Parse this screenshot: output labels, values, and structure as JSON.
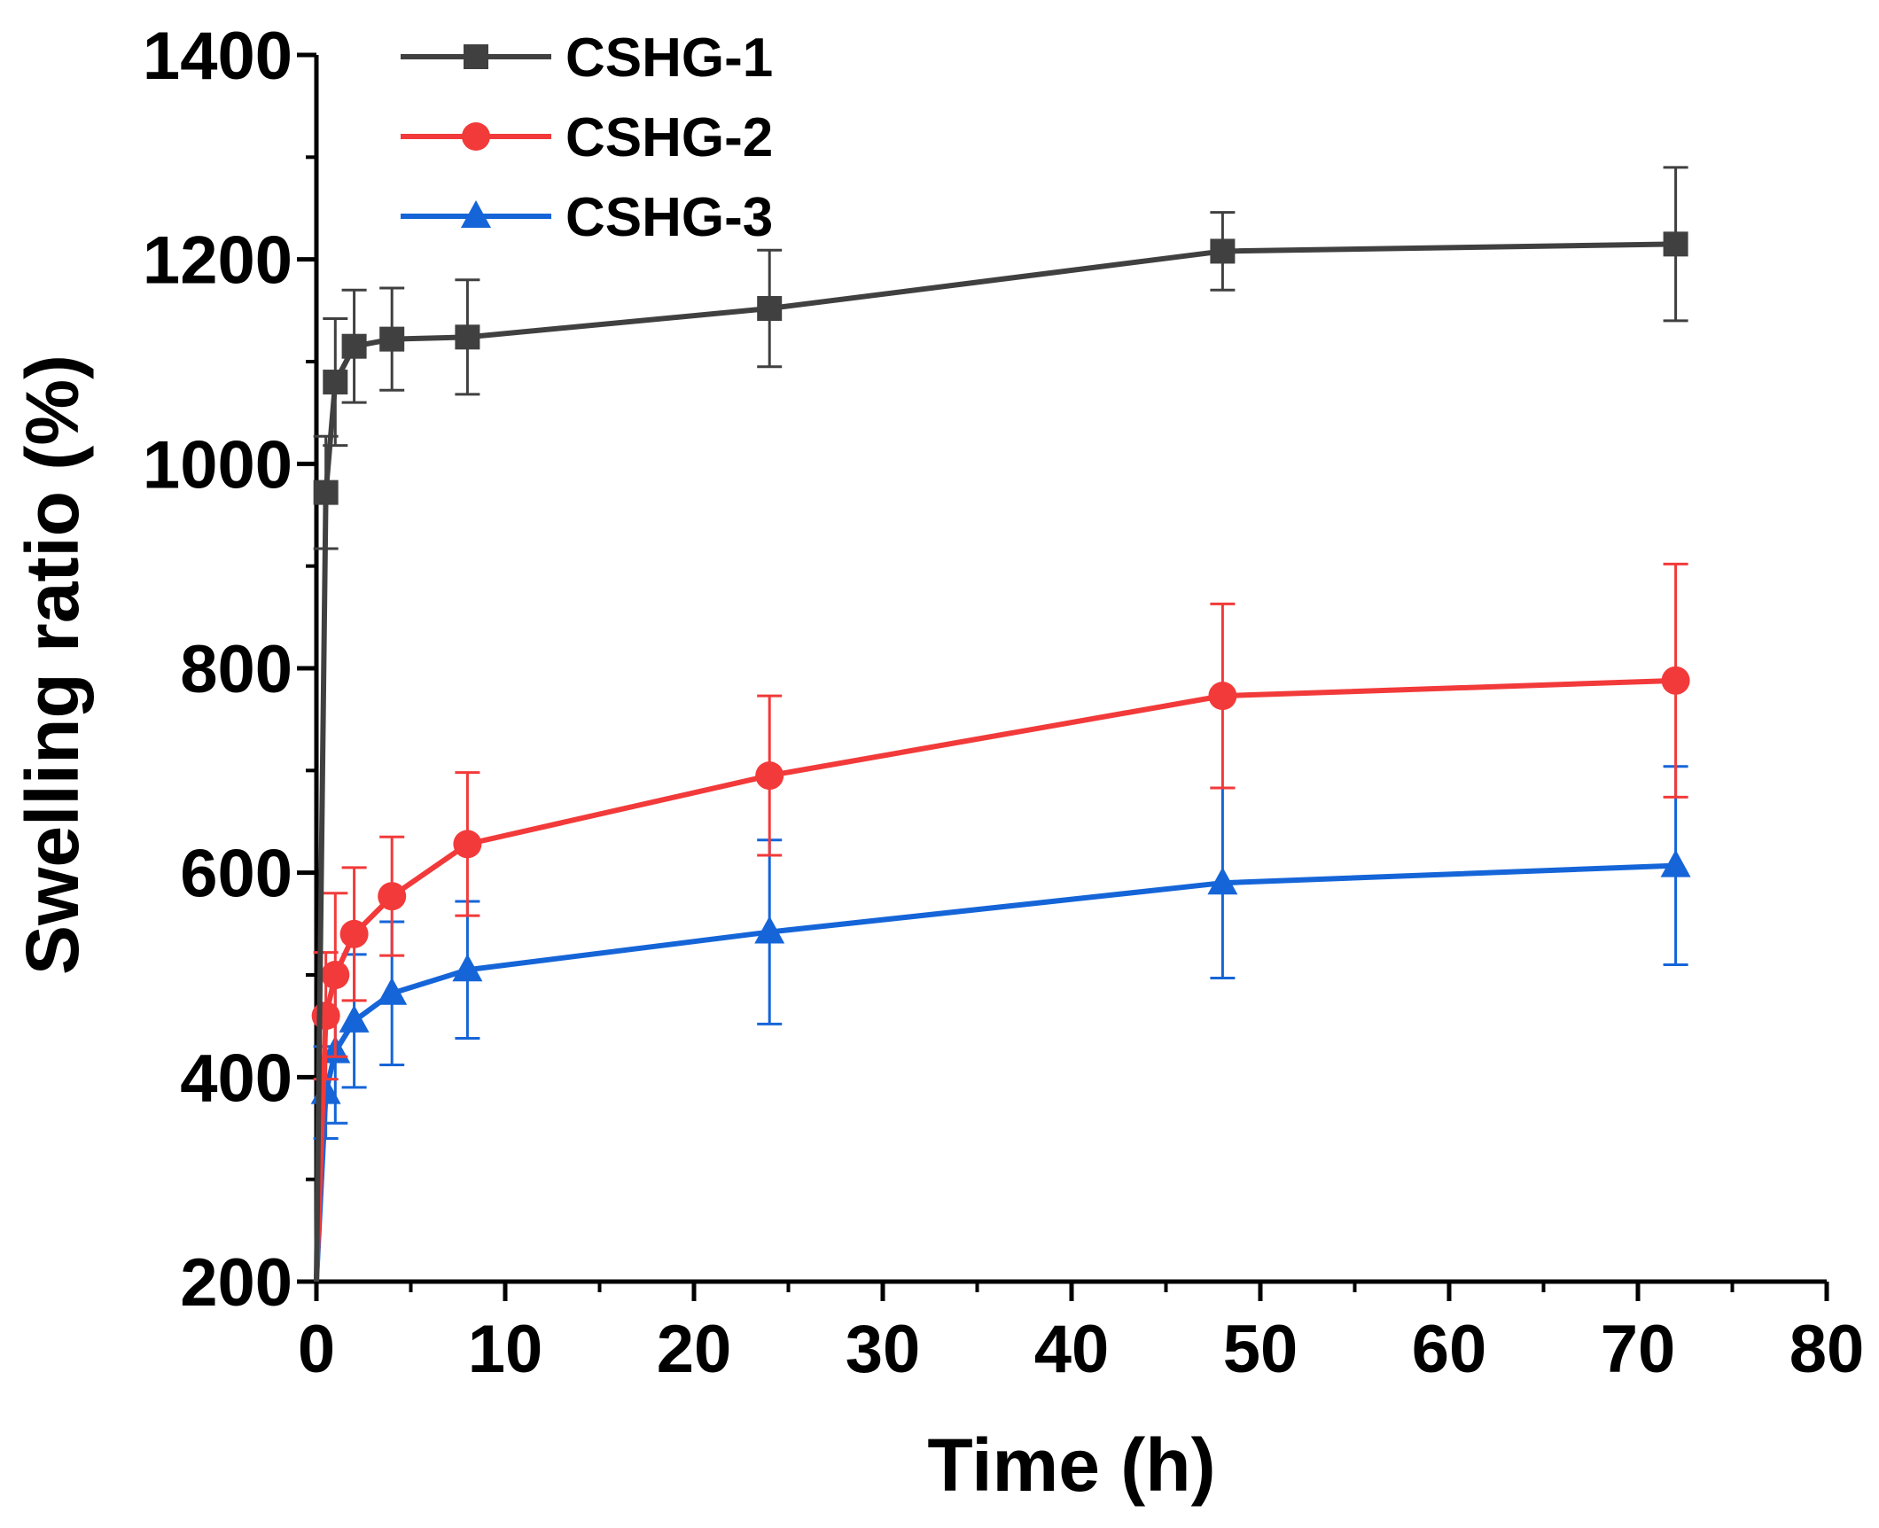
{
  "chart_data": {
    "type": "line",
    "title": "",
    "xlabel": "Time (h)",
    "ylabel": "Swelling ratio (%)",
    "xlim": [
      0,
      80
    ],
    "ylim": [
      200,
      1400
    ],
    "xticks": [
      0,
      10,
      20,
      30,
      40,
      50,
      60,
      70,
      80
    ],
    "yticks": [
      200,
      400,
      600,
      800,
      1000,
      1200,
      1400
    ],
    "xtick_labels": [
      "0",
      "10",
      "20",
      "30",
      "40",
      "50",
      "60",
      "70",
      "80"
    ],
    "ytick_labels": [
      "200",
      "400",
      "600",
      "800",
      "1000",
      "1200",
      "1400"
    ],
    "grid": false,
    "legend_position": "top-left",
    "x": [
      0,
      0.5,
      1,
      2,
      4,
      8,
      24,
      48,
      72
    ],
    "series": [
      {
        "name": "CSHG-1",
        "color": "#404040",
        "marker": "square",
        "values": [
          200,
          972,
          1080,
          1115,
          1122,
          1124,
          1152,
          1208,
          1215
        ],
        "errors": [
          null,
          55,
          62,
          55,
          50,
          56,
          57,
          38,
          75
        ]
      },
      {
        "name": "CSHG-2",
        "color": "#f23a3a",
        "marker": "circle",
        "values": [
          200,
          460,
          500,
          540,
          577,
          628,
          695,
          773,
          788
        ],
        "errors": [
          null,
          62,
          80,
          65,
          58,
          70,
          78,
          90,
          114
        ]
      },
      {
        "name": "CSHG-3",
        "color": "#1565d8",
        "marker": "triangle",
        "values": [
          200,
          385,
          425,
          455,
          482,
          505,
          542,
          590,
          607
        ],
        "errors": [
          null,
          45,
          70,
          65,
          70,
          67,
          90,
          93,
          97
        ]
      }
    ]
  }
}
